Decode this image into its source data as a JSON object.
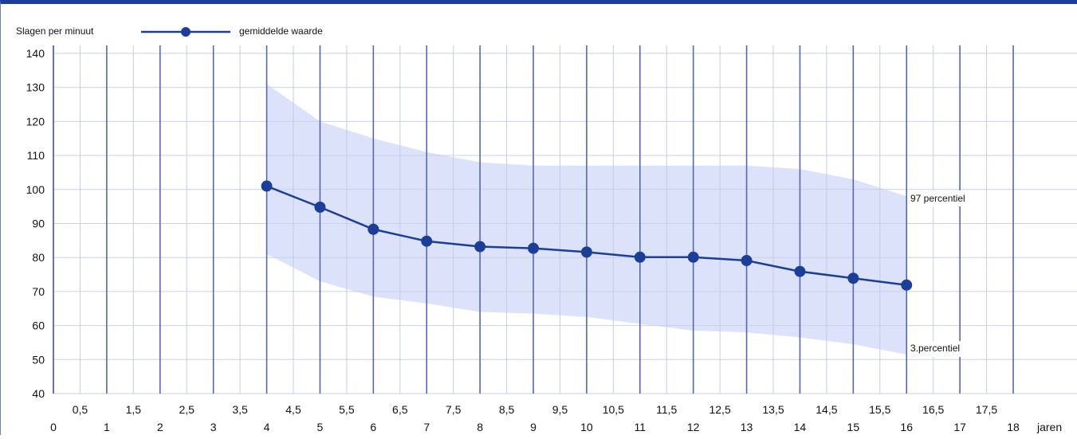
{
  "chart_data": {
    "type": "line",
    "ylabel": "Slagen per minuut",
    "xlabel": "jaren",
    "xlim": [
      0,
      18
    ],
    "ylim": [
      40,
      140
    ],
    "x_ticks": [
      0,
      0.5,
      1,
      1.5,
      2,
      2.5,
      3,
      3.5,
      4,
      4.5,
      5,
      5.5,
      6,
      6.5,
      7,
      7.5,
      8,
      8.5,
      9,
      9.5,
      10,
      10.5,
      11,
      11.5,
      12,
      12.5,
      13,
      13.5,
      14,
      14.5,
      15,
      15.5,
      16,
      16.5,
      17,
      17.5,
      18
    ],
    "x_tick_labels": [
      "0",
      "0,5",
      "1",
      "1,5",
      "2",
      "2,5",
      "3",
      "3,5",
      "4",
      "4,5",
      "5",
      "5,5",
      "6",
      "6,5",
      "7",
      "7,5",
      "8",
      "8,5",
      "9",
      "9,5",
      "10",
      "10,5",
      "11",
      "11,5",
      "12",
      "12,5",
      "13",
      "13,5",
      "14",
      "14,5",
      "15",
      "15,5",
      "16",
      "16,5",
      "17",
      "17,5",
      "18"
    ],
    "y_ticks": [
      40,
      50,
      60,
      70,
      80,
      90,
      100,
      110,
      120,
      130,
      140
    ],
    "grid": true,
    "legend": "top-left",
    "series": [
      {
        "name": "gemiddelde waarde",
        "x": [
          4,
          5,
          6,
          7,
          8,
          9,
          10,
          11,
          12,
          13,
          14,
          15,
          16
        ],
        "y": [
          101,
          94.8,
          88.3,
          84.8,
          83.2,
          82.7,
          81.6,
          80.1,
          80.1,
          79.1,
          75.9,
          73.9,
          71.9
        ]
      }
    ],
    "band": {
      "x": [
        4,
        5,
        6,
        7,
        8,
        9,
        10,
        11,
        12,
        13,
        14,
        15,
        16
      ],
      "upper": [
        131,
        120,
        115,
        111,
        108,
        107,
        107,
        107,
        107,
        107,
        106,
        103,
        98
      ],
      "lower": [
        81,
        73,
        68.5,
        66.5,
        64,
        63.5,
        62.5,
        60.5,
        58.5,
        58,
        56.5,
        54.5,
        51.5
      ]
    },
    "annotations": {
      "upper_label": "97 percentiel",
      "lower_label": "3.percentiel"
    },
    "colors": {
      "line": "#1b3f99",
      "band": "#dde2fb",
      "grid_major": "#5767ac",
      "grid_minor": "#c4cbe8",
      "grid_horizontal": "#c9d0ea",
      "frame": "#1b3f99"
    }
  }
}
